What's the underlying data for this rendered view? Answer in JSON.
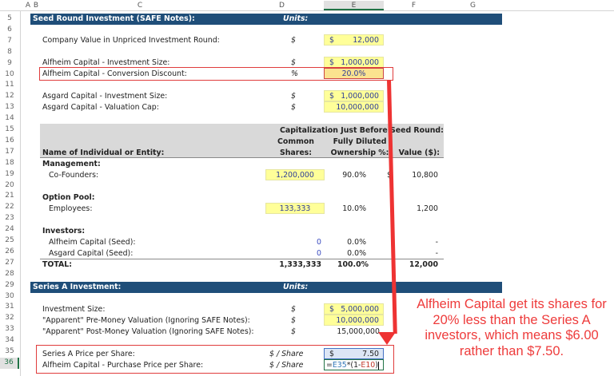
{
  "columns": [
    "A",
    "B",
    "C",
    "D",
    "E",
    "F",
    "G"
  ],
  "selected_column": "E",
  "rows": [
    5,
    6,
    7,
    8,
    9,
    10,
    11,
    12,
    13,
    14,
    15,
    16,
    17,
    18,
    19,
    20,
    21,
    22,
    23,
    24,
    25,
    26,
    27,
    28,
    29,
    30,
    31,
    32,
    33,
    34,
    35,
    36
  ],
  "selected_row": 36,
  "seed_section": {
    "title": "Seed Round Investment (SAFE Notes):",
    "units_header": "Units:",
    "items": [
      {
        "label": "Company Value in Unpriced Investment Round:",
        "unit": "$",
        "currency": "$",
        "value": "12,000"
      },
      {
        "label": "Alfheim Capital - Investment Size:",
        "unit": "$",
        "currency": "$",
        "value": "1,000,000"
      },
      {
        "label": "Alfheim Capital - Conversion Discount:",
        "unit": "%",
        "currency": "",
        "value": "20.0%"
      },
      {
        "label": "Asgard Capital - Investment Size:",
        "unit": "$",
        "currency": "$",
        "value": "1,000,000"
      },
      {
        "label": "Asgard Capital - Valuation Cap:",
        "unit": "$",
        "currency": "",
        "value": "10,000,000"
      }
    ]
  },
  "cap_table": {
    "super_header": "Capitalization Just Before Seed Round:",
    "headers": {
      "name": "Name of Individual or Entity:",
      "shares_line1": "Common",
      "shares_line2": "Shares:",
      "own_line1": "Fully Diluted",
      "own_line2": "Ownership %:",
      "value": "Value ($):"
    },
    "groups": [
      {
        "title": "Management:",
        "rows": [
          {
            "name": "Co-Founders:",
            "shares": "1,200,000",
            "ownership": "90.0%",
            "currency": "$",
            "value": "10,800"
          }
        ]
      },
      {
        "title": "Option Pool:",
        "rows": [
          {
            "name": "Employees:",
            "shares": "133,333",
            "ownership": "10.0%",
            "currency": "",
            "value": "1,200"
          }
        ]
      },
      {
        "title": "Investors:",
        "rows": [
          {
            "name": "Alfheim Capital (Seed):",
            "shares": "0",
            "ownership": "0.0%",
            "currency": "",
            "value": "-"
          },
          {
            "name": "Asgard Capital (Seed):",
            "shares": "0",
            "ownership": "0.0%",
            "currency": "",
            "value": "-"
          }
        ]
      }
    ],
    "total": {
      "label": "TOTAL:",
      "shares": "1,333,333",
      "ownership": "100.0%",
      "value": "12,000"
    }
  },
  "series_a": {
    "title": "Series A Investment:",
    "units_header": "Units:",
    "items": [
      {
        "label": "Investment Size:",
        "unit": "$",
        "currency": "$",
        "value": "5,000,000"
      },
      {
        "label": "\"Apparent\" Pre-Money Valuation (Ignoring SAFE Notes):",
        "unit": "$",
        "currency": "",
        "value": "10,000,000"
      },
      {
        "label": "\"Apparent\" Post-Money Valuation (Ignoring SAFE Notes):",
        "unit": "$",
        "currency": "",
        "value": "15,000,000"
      },
      {
        "label": "Series A Price per Share:",
        "unit": "$ / Share",
        "currency": "$",
        "value": "7.50"
      },
      {
        "label": "Alfheim Capital - Purchase Price per Share:",
        "unit": "$ / Share",
        "currency": "",
        "value": ""
      }
    ],
    "formula": {
      "prefix": "=",
      "ref1": "E35",
      "mid": "*(1-",
      "ref2": "E10",
      "suffix": ")"
    }
  },
  "annotation": {
    "text": "Alfheim Capital get its shares for 20% less than the Series A investors, which means $6.00 rather than $7.50.",
    "color": "#ee3b3b"
  },
  "colors": {
    "header_bar": "#1f4e79",
    "input_yellow": "#ffff99",
    "highlight_red": "#e03c3c",
    "gray_header": "#d9d9d9",
    "blue_link": "#2e3d98"
  }
}
